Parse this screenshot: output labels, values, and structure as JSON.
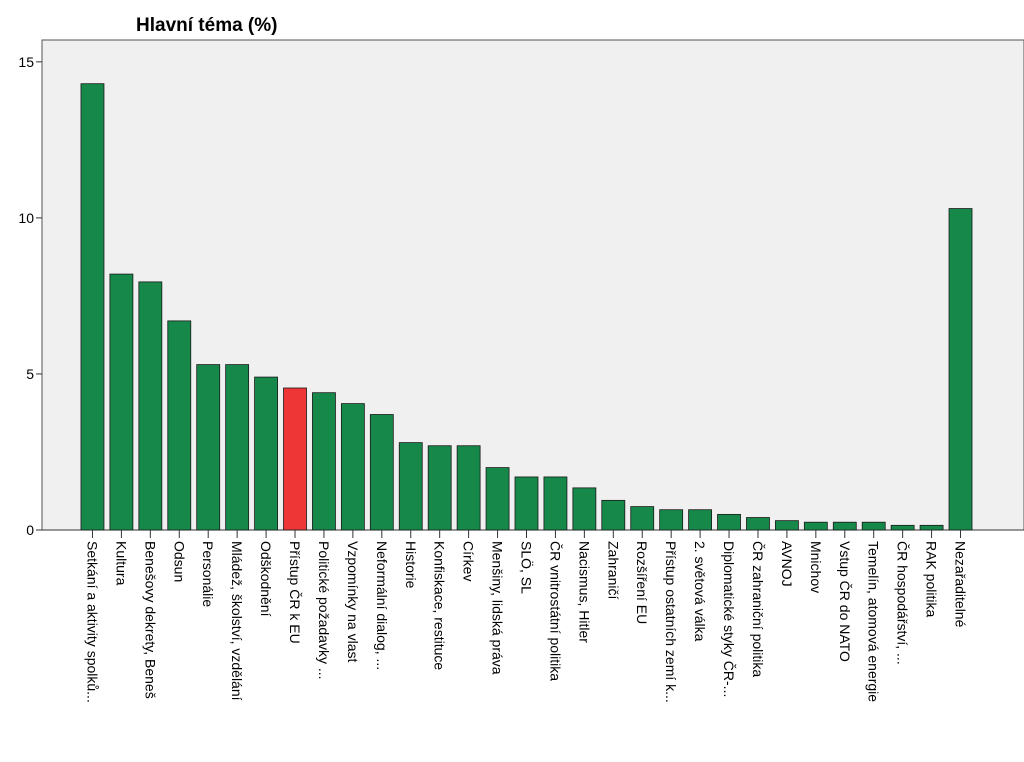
{
  "chart_data": {
    "type": "bar",
    "title": "Hlavní téma (%)",
    "xlabel": "",
    "ylabel": "",
    "ylim": [
      0,
      15.7
    ],
    "yticks": [
      0,
      5,
      10,
      15
    ],
    "ytick_labels": [
      "0",
      "5",
      "10",
      "15"
    ],
    "grid": false,
    "categories": [
      "Setkání a aktivity spolků...",
      "Kultura",
      "Benešovy dekrety, Beneš",
      "Odsun",
      "Personálie",
      "Mládež, školství, vzdělání",
      "Odškodnění",
      "Přístup ČR k EU",
      "Politické požadavky ...",
      "Vzpomínky na vlast",
      "Neformální dialog, ...",
      "Historie",
      "Konfiskace, restituce",
      "Církev",
      "Menšiny, lidská práva",
      "SLÖ, SL",
      "ČR vnitrostátní politika",
      "Nacismus, Hitler",
      "Zahraničí",
      "Rozšíření EU",
      "Přístup ostatních zemí k...",
      "2. světová válka",
      "Diplomatické styky ČR-...",
      "ČR zahraniční politika",
      "AVNOJ",
      "Mnichov",
      "Vstup ČR do NATO",
      "Temelín, atomová energie",
      "ČR hospodářství, ...",
      "RAK politika",
      "Nezařaditelné"
    ],
    "values": [
      14.3,
      8.2,
      7.95,
      6.7,
      5.3,
      5.3,
      4.9,
      4.55,
      4.4,
      4.05,
      3.7,
      2.8,
      2.7,
      2.7,
      2.0,
      1.7,
      1.7,
      1.35,
      0.95,
      0.75,
      0.65,
      0.65,
      0.5,
      0.4,
      0.3,
      0.25,
      0.25,
      0.25,
      0.15,
      0.15,
      10.3
    ],
    "colors": {
      "bar": "#15884a",
      "highlight": "#ee3636",
      "plot_background": "#f0f0f0",
      "frame": "#555555"
    },
    "highlight_index": 7
  }
}
